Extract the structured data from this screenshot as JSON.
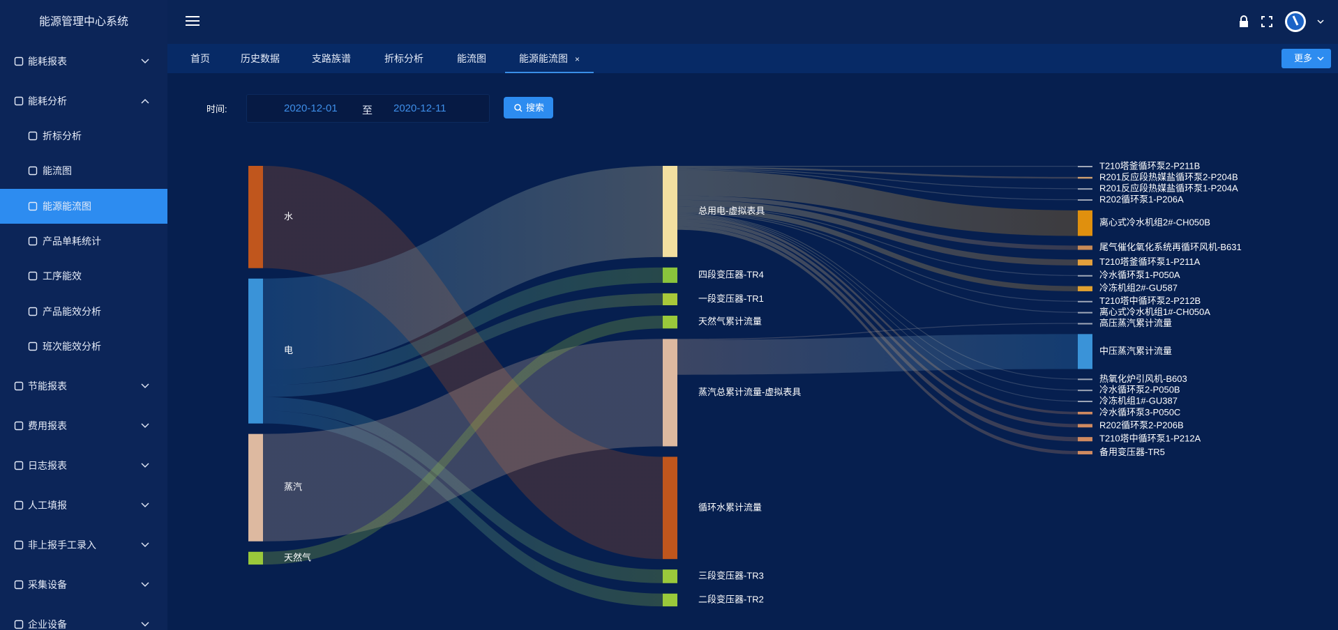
{
  "sidebar": {
    "title": "能源管理中心系统",
    "menu": [
      {
        "label": "能耗报表"
      },
      {
        "label": "能耗分析",
        "expanded": true,
        "children": [
          {
            "label": "折标分析"
          },
          {
            "label": "能流图"
          },
          {
            "label": "能源能流图",
            "active": true
          },
          {
            "label": "产品单耗统计"
          },
          {
            "label": "工序能效"
          },
          {
            "label": "产品能效分析"
          },
          {
            "label": "班次能效分析"
          }
        ]
      },
      {
        "label": "节能报表"
      },
      {
        "label": "费用报表"
      },
      {
        "label": "日志报表"
      },
      {
        "label": "人工填报"
      },
      {
        "label": "非上报手工录入"
      },
      {
        "label": "采集设备"
      },
      {
        "label": "企业设备"
      }
    ]
  },
  "tabs": [
    {
      "label": "首页"
    },
    {
      "label": "历史数据"
    },
    {
      "label": "支路族谱"
    },
    {
      "label": "折标分析"
    },
    {
      "label": "能流图"
    },
    {
      "label": "能源能流图",
      "active": true
    }
  ],
  "more_button": "更多",
  "filter": {
    "label": "时间:",
    "start": "2020-12-01",
    "separator": "至",
    "end": "2020-12-11",
    "button": "搜索"
  },
  "chart_data": {
    "type": "sankey",
    "nodes": [
      {
        "name": "水",
        "color": "#c0561d",
        "column": 0
      },
      {
        "name": "电",
        "color": "#3a93d8",
        "column": 0
      },
      {
        "name": "蒸汽",
        "color": "#ddb9a0",
        "column": 0
      },
      {
        "name": "天然气",
        "color": "#9ac93b",
        "column": 0
      },
      {
        "name": "总用电-虚拟表具",
        "color": "#f2dfa0",
        "column": 1
      },
      {
        "name": "四段变压器-TR4",
        "color": "#8ac43c",
        "column": 1
      },
      {
        "name": "一段变压器-TR1",
        "color": "#a8c83a",
        "column": 1
      },
      {
        "name": "天然气累计流量",
        "color": "#9ac93b",
        "column": 1
      },
      {
        "name": "蒸汽总累计流量-虚拟表具",
        "color": "#ddb9a0",
        "column": 1
      },
      {
        "name": "循环水累计流量",
        "color": "#c0561d",
        "column": 1
      },
      {
        "name": "三段变压器-TR3",
        "color": "#9ac93b",
        "column": 1
      },
      {
        "name": "二段变压器-TR2",
        "color": "#9ac93b",
        "column": 1
      },
      {
        "name": "T210塔釜循环泵2-P211B",
        "color": "#a0a8b8",
        "column": 2
      },
      {
        "name": "R201反应段热媒盐循环泵2-P204B",
        "color": "#d0a070",
        "column": 2
      },
      {
        "name": "R201反应段热媒盐循环泵1-P204A",
        "color": "#a0a8b8",
        "column": 2
      },
      {
        "name": "R202循环泵1-P206A",
        "color": "#a0a8b8",
        "column": 2
      },
      {
        "name": "离心式冷水机组2#-CH050B",
        "color": "#e0900e",
        "column": 2
      },
      {
        "name": "尾气催化氧化系统再循环风机-B631",
        "color": "#c88a56",
        "column": 2
      },
      {
        "name": "T210塔釜循环泵1-P211A",
        "color": "#e3a03c",
        "column": 2
      },
      {
        "name": "冷水循环泵1-P050A",
        "color": "#a0a8b8",
        "column": 2
      },
      {
        "name": "冷冻机组2#-GU587",
        "color": "#e0a030",
        "column": 2
      },
      {
        "name": "T210塔中循环泵2-P212B",
        "color": "#a0a8b8",
        "column": 2
      },
      {
        "name": "离心式冷水机组1#-CH050A",
        "color": "#a0a8b8",
        "column": 2
      },
      {
        "name": "高压蒸汽累计流量",
        "color": "#a0a8b8",
        "column": 2
      },
      {
        "name": "中压蒸汽累计流量",
        "color": "#3a93d8",
        "column": 2
      },
      {
        "name": "热氧化炉引风机-B603",
        "color": "#a0a8b8",
        "column": 2
      },
      {
        "name": "冷水循环泵2-P050B",
        "color": "#a0a8b8",
        "column": 2
      },
      {
        "name": "冷冻机组1#-GU387",
        "color": "#a0a8b8",
        "column": 2
      },
      {
        "name": "冷水循环泵3-P050C",
        "color": "#d08a60",
        "column": 2
      },
      {
        "name": "R202循环泵2-P206B",
        "color": "#d08a60",
        "column": 2
      },
      {
        "name": "T210塔中循环泵1-P212A",
        "color": "#d08a60",
        "column": 2
      },
      {
        "name": "备用变压器-TR5",
        "color": "#d08a60",
        "column": 2
      }
    ],
    "links": [
      {
        "source": "水",
        "target": "循环水累计流量",
        "value": 120
      },
      {
        "source": "电",
        "target": "总用电-虚拟表具",
        "value": 107
      },
      {
        "source": "电",
        "target": "四段变压器-TR4",
        "value": 18
      },
      {
        "source": "电",
        "target": "一段变压器-TR1",
        "value": 14
      },
      {
        "source": "电",
        "target": "三段变压器-TR3",
        "value": 16
      },
      {
        "source": "电",
        "target": "二段变压器-TR2",
        "value": 15
      },
      {
        "source": "蒸汽",
        "target": "蒸汽总累计流量-虚拟表具",
        "value": 126
      },
      {
        "source": "天然气",
        "target": "天然气累计流量",
        "value": 15
      },
      {
        "source": "总用电-虚拟表具",
        "target": "T210塔釜循环泵2-P211B",
        "value": 1
      },
      {
        "source": "总用电-虚拟表具",
        "target": "R201反应段热媒盐循环泵2-P204B",
        "value": 2
      },
      {
        "source": "总用电-虚拟表具",
        "target": "R201反应段热媒盐循环泵1-P204A",
        "value": 1
      },
      {
        "source": "总用电-虚拟表具",
        "target": "R202循环泵1-P206A",
        "value": 1
      },
      {
        "source": "总用电-虚拟表具",
        "target": "离心式冷水机组2#-CH050B",
        "value": 30
      },
      {
        "source": "总用电-虚拟表具",
        "target": "尾气催化氧化系统再循环风机-B631",
        "value": 5
      },
      {
        "source": "总用电-虚拟表具",
        "target": "T210塔釜循环泵1-P211A",
        "value": 7
      },
      {
        "source": "总用电-虚拟表具",
        "target": "冷水循环泵1-P050A",
        "value": 1
      },
      {
        "source": "总用电-虚拟表具",
        "target": "冷冻机组2#-GU587",
        "value": 6
      },
      {
        "source": "总用电-虚拟表具",
        "target": "T210塔中循环泵2-P212B",
        "value": 1
      },
      {
        "source": "总用电-虚拟表具",
        "target": "离心式冷水机组1#-CH050A",
        "value": 1
      },
      {
        "source": "蒸汽总累计流量-虚拟表具",
        "target": "高压蒸汽累计流量",
        "value": 1
      },
      {
        "source": "蒸汽总累计流量-虚拟表具",
        "target": "中压蒸汽累计流量",
        "value": 41
      },
      {
        "source": "总用电-虚拟表具",
        "target": "热氧化炉引风机-B603",
        "value": 1
      },
      {
        "source": "总用电-虚拟表具",
        "target": "冷水循环泵2-P050B",
        "value": 1
      },
      {
        "source": "总用电-虚拟表具",
        "target": "冷冻机组1#-GU387",
        "value": 1
      },
      {
        "source": "总用电-虚拟表具",
        "target": "冷水循环泵3-P050C",
        "value": 3
      },
      {
        "source": "总用电-虚拟表具",
        "target": "R202循环泵2-P206B",
        "value": 4
      },
      {
        "source": "总用电-虚拟表具",
        "target": "T210塔中循环泵1-P212A",
        "value": 5
      },
      {
        "source": "总用电-虚拟表具",
        "target": "备用变压器-TR5",
        "value": 4
      }
    ]
  }
}
